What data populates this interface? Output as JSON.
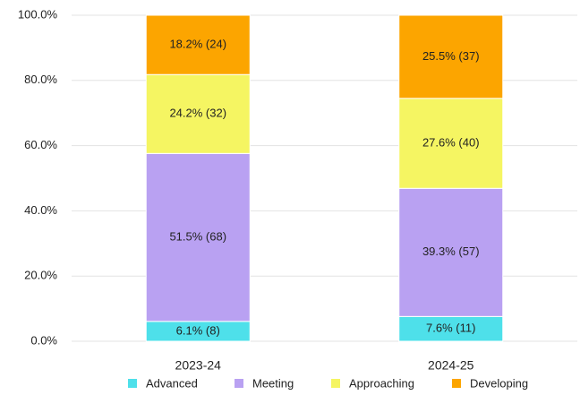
{
  "chart_data": {
    "type": "stacked_bar",
    "categories": [
      "2023-24",
      "2024-25"
    ],
    "series": [
      {
        "name": "Advanced",
        "color": "#4ee0ea",
        "values": [
          6.1,
          7.6
        ],
        "value_labels": [
          "6.1% (8)",
          "7.6% (11)"
        ]
      },
      {
        "name": "Meeting",
        "color": "#b9a1f2",
        "values": [
          51.5,
          39.3
        ],
        "value_labels": [
          "51.5% (68)",
          "39.3% (57)"
        ]
      },
      {
        "name": "Approaching",
        "color": "#f5f562",
        "values": [
          24.2,
          27.6
        ],
        "value_labels": [
          "24.2% (32)",
          "27.6% (40)"
        ]
      },
      {
        "name": "Developing",
        "color": "#fca500",
        "values": [
          18.2,
          25.5
        ],
        "value_labels": [
          "18.2% (24)",
          "25.5% (37)"
        ]
      }
    ],
    "ylim": [
      0,
      100
    ],
    "yticks": [
      {
        "value": 0,
        "label": "0.0%"
      },
      {
        "value": 20,
        "label": "20.0%"
      },
      {
        "value": 40,
        "label": "40.0%"
      },
      {
        "value": 60,
        "label": "60.0%"
      },
      {
        "value": 80,
        "label": "80.0%"
      },
      {
        "value": 100,
        "label": "100.0%"
      }
    ],
    "grid": true,
    "legend": "bottom"
  }
}
